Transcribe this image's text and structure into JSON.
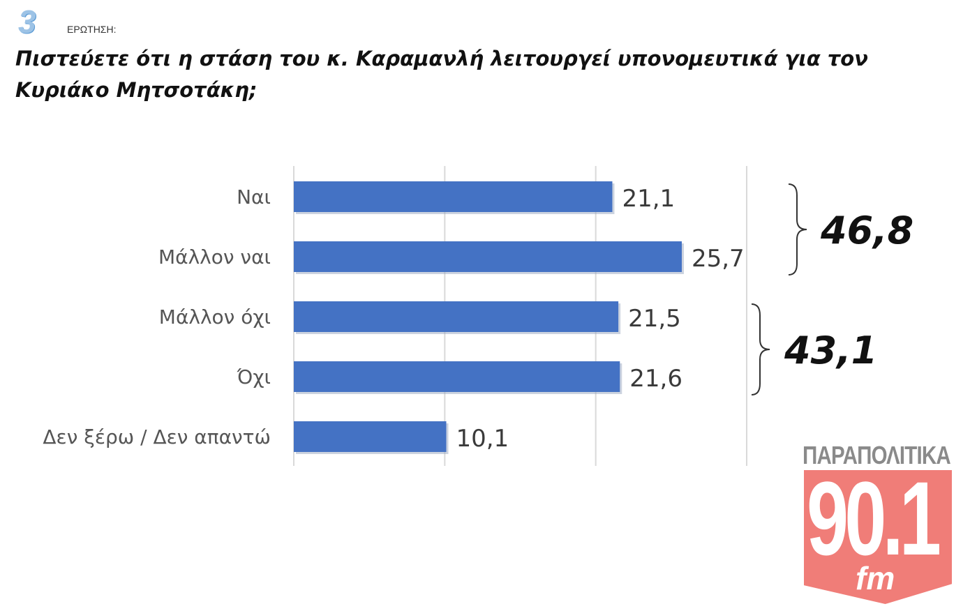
{
  "header": {
    "question_number": "3",
    "question_label": "ΕΡΩΤΗΣΗ:",
    "question_text": "Πιστεύετε ότι η στάση του κ. Καραμανλή λειτουργεί υπονομευτικά για τον Κυριάκο Μητσοτάκη;"
  },
  "chart_data": {
    "type": "bar",
    "orientation": "horizontal",
    "categories": [
      "Ναι",
      "Μάλλον ναι",
      "Μάλλον όχι",
      "Όχι",
      "Δεν ξέρω / Δεν απαντώ"
    ],
    "values": [
      21.1,
      25.7,
      21.5,
      21.6,
      10.1
    ],
    "value_labels": [
      "21,1",
      "25,7",
      "21,5",
      "21,6",
      "10,1"
    ],
    "bar_color": "#4472c4",
    "xlim": [
      0,
      30
    ],
    "gridlines": [
      0,
      10,
      20,
      30
    ],
    "grid": true,
    "groups": [
      {
        "categories": [
          "Ναι",
          "Μάλλον ναι"
        ],
        "total": "46,8"
      },
      {
        "categories": [
          "Μάλλον όχι",
          "Όχι"
        ],
        "total": "43,1"
      }
    ]
  },
  "logo": {
    "top_text": "ΠΑΡΑΠΟΛΙΤΙΚΑ",
    "number": "90.1",
    "suffix": "fm",
    "color": "#f07d78"
  }
}
